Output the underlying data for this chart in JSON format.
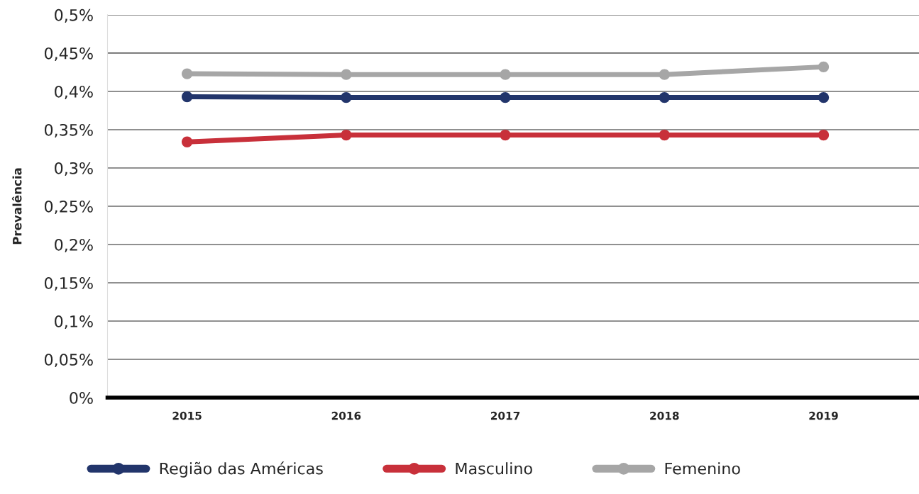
{
  "chart_data": {
    "type": "line",
    "ylabel": "Prevalência",
    "categories": [
      "2015",
      "2016",
      "2017",
      "2018",
      "2019"
    ],
    "series": [
      {
        "name": "Região das Américas",
        "color": "#22356b",
        "values": [
          0.393,
          0.392,
          0.392,
          0.392,
          0.392
        ]
      },
      {
        "name": "Masculino",
        "color": "#c8303a",
        "values": [
          0.334,
          0.343,
          0.343,
          0.343,
          0.343
        ]
      },
      {
        "name": "Femenino",
        "color": "#a6a6a6",
        "values": [
          0.423,
          0.422,
          0.422,
          0.422,
          0.432
        ]
      }
    ],
    "ylim": [
      0,
      0.5
    ],
    "yticks": [
      {
        "value": 0,
        "label": "0%"
      },
      {
        "value": 0.05,
        "label": "0,05%"
      },
      {
        "value": 0.1,
        "label": "0,1%"
      },
      {
        "value": 0.15,
        "label": "0,15%"
      },
      {
        "value": 0.2,
        "label": "0,2%"
      },
      {
        "value": 0.25,
        "label": "0,25%"
      },
      {
        "value": 0.3,
        "label": "0,3%"
      },
      {
        "value": 0.35,
        "label": "0,35%"
      },
      {
        "value": 0.4,
        "label": "0,4%"
      },
      {
        "value": 0.45,
        "label": "0,45%"
      },
      {
        "value": 0.5,
        "label": "0,5%"
      }
    ],
    "grid": "y",
    "legend": "bottom",
    "marker": "circle",
    "line_style": "solid"
  }
}
